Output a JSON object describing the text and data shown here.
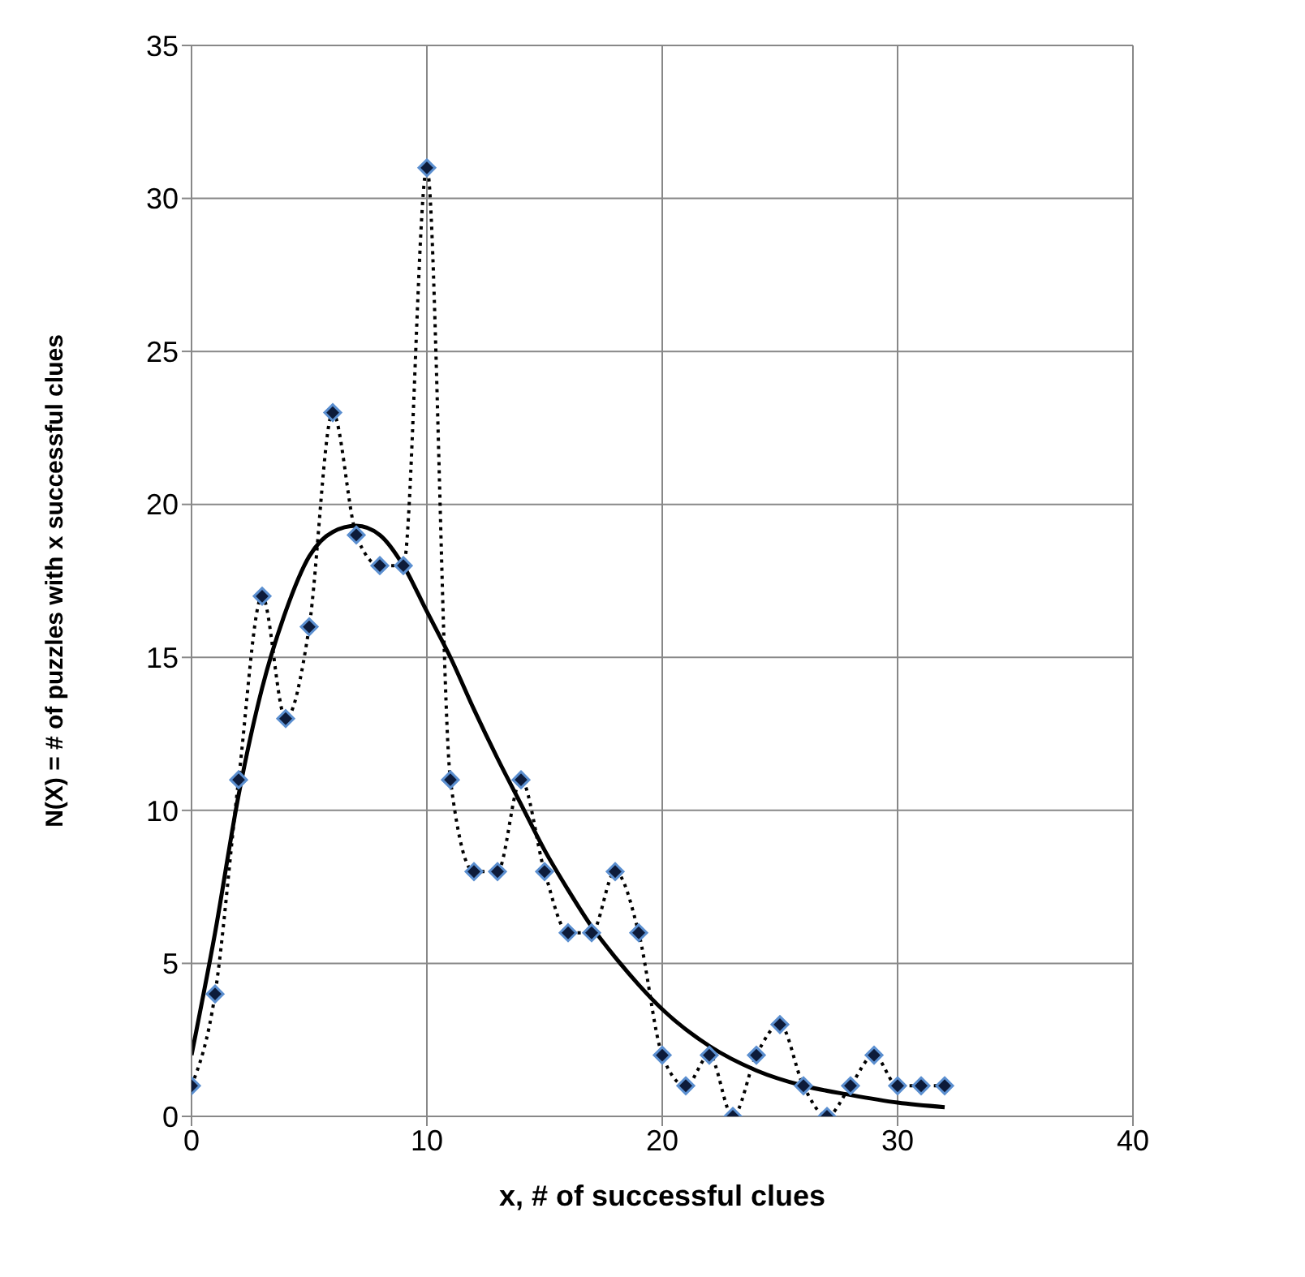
{
  "chart_data": {
    "type": "line",
    "xlabel": "x, # of successful clues",
    "ylabel": "N(X) = # of puzzles with x successful clues",
    "xlim": [
      0,
      40
    ],
    "ylim": [
      0,
      35
    ],
    "xticks": [
      0,
      10,
      20,
      30,
      40
    ],
    "yticks": [
      0,
      5,
      10,
      15,
      20,
      25,
      30,
      35
    ],
    "grid": true,
    "series": [
      {
        "color": "#000000",
        "line_style": "dotted",
        "marker": "diamond",
        "x": [
          0,
          1,
          2,
          3,
          4,
          5,
          6,
          7,
          8,
          9,
          10,
          11,
          12,
          13,
          14,
          15,
          16,
          17,
          18,
          19,
          20,
          21,
          22,
          23,
          24,
          25,
          26,
          27,
          28,
          29,
          30,
          31,
          32
        ],
        "values": [
          1,
          4,
          11,
          17,
          13,
          16,
          23,
          19,
          18,
          18,
          31,
          11,
          8,
          8,
          11,
          8,
          6,
          6,
          8,
          6,
          2,
          1,
          2,
          0,
          2,
          3,
          1,
          0,
          1,
          2,
          1,
          1,
          1
        ]
      },
      {
        "color": "#000000",
        "line_style": "solid",
        "marker": "none",
        "x": [
          0,
          1,
          2,
          3,
          4,
          5,
          6,
          7,
          8,
          9,
          10,
          11,
          12,
          13,
          14,
          15,
          16,
          17,
          18,
          19,
          20,
          22,
          24,
          26,
          28,
          30,
          32
        ],
        "values": [
          2,
          6,
          10.5,
          14,
          16.5,
          18.3,
          19.1,
          19.3,
          19,
          18,
          16.5,
          15,
          13.3,
          11.7,
          10.2,
          8.7,
          7.4,
          6.2,
          5.2,
          4.3,
          3.5,
          2.3,
          1.5,
          1,
          0.7,
          0.45,
          0.3
        ]
      }
    ]
  }
}
